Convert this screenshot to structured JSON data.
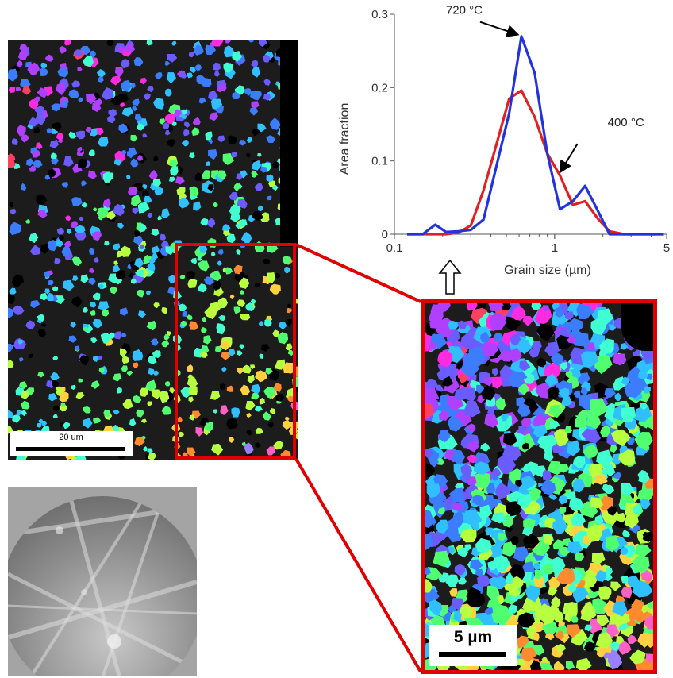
{
  "chart_data": {
    "type": "line",
    "xscale": "log",
    "xlabel": "Grain size (µm)",
    "ylabel": "Area fraction",
    "xlim": [
      0.1,
      5
    ],
    "ylim": [
      0,
      0.3
    ],
    "x_ticks": [
      {
        "value": 0.1,
        "label": "0.1"
      },
      {
        "value": 1,
        "label": "1"
      },
      {
        "value": 5,
        "label": "5"
      }
    ],
    "y_ticks": [
      {
        "value": 0,
        "label": "0"
      },
      {
        "value": 0.1,
        "label": "0.1"
      },
      {
        "value": 0.2,
        "label": "0.2"
      },
      {
        "value": 0.3,
        "label": "0.3"
      }
    ],
    "series": [
      {
        "name": "720 °C",
        "color": "#2233dd",
        "x": [
          0.12,
          0.15,
          0.18,
          0.21,
          0.25,
          0.3,
          0.36,
          0.43,
          0.52,
          0.62,
          0.75,
          0.9,
          1.08,
          1.3,
          1.55,
          1.85,
          2.2,
          2.7,
          3.3,
          4.8
        ],
        "y": [
          0.0,
          0.0,
          0.013,
          0.003,
          0.004,
          0.006,
          0.02,
          0.09,
          0.165,
          0.27,
          0.22,
          0.11,
          0.034,
          0.045,
          0.066,
          0.033,
          0.0,
          0.0,
          0.0,
          0.0
        ]
      },
      {
        "name": "400 °C",
        "color": "#e02020",
        "x": [
          0.12,
          0.15,
          0.18,
          0.21,
          0.25,
          0.3,
          0.36,
          0.43,
          0.52,
          0.62,
          0.75,
          0.9,
          1.08,
          1.3,
          1.55,
          1.85,
          2.2,
          2.7,
          3.3,
          4.8
        ],
        "y": [
          0.0,
          0.0,
          0.0,
          0.0,
          0.002,
          0.012,
          0.06,
          0.12,
          0.185,
          0.196,
          0.16,
          0.11,
          0.08,
          0.04,
          0.045,
          0.022,
          0.004,
          0.0,
          0.0,
          0.0
        ]
      }
    ],
    "annotations": [
      {
        "text": "720 °C",
        "series": "720 °C",
        "at_x": 0.62
      },
      {
        "text": "400 °C",
        "series": "400 °C",
        "at_x": 1.08
      }
    ]
  },
  "images": {
    "ebsd_scale_label": "20 um",
    "zoom_scale_label": "5 µm",
    "arrow_direction": "up"
  },
  "colors": {
    "highlight": "#e00000",
    "ipf_palette": [
      "#ff3aa0",
      "#ff4060",
      "#ff2be0",
      "#b040ff",
      "#6a5cff",
      "#3c7cff",
      "#30c0ff",
      "#40ffd0",
      "#50ff70",
      "#b8ff40",
      "#ffd040",
      "#ff8a30",
      "#ff60c8",
      "#9a80ff",
      "#f070ff"
    ]
  }
}
